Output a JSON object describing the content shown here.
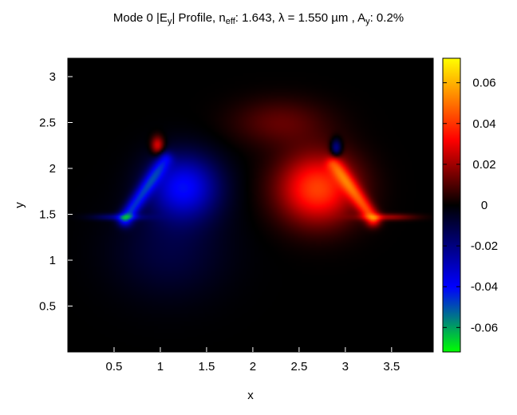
{
  "chart_data": {
    "type": "heatmap",
    "title_parts": {
      "prefix": "Mode 0 |E",
      "field_sub": "y",
      "after_field": "| Profile, n",
      "neff_sub": "eff",
      "neff_value": ": 1.643, λ = 1.550 µm , A",
      "area_sub": "y",
      "area_value": ": 0.2%"
    },
    "xlabel": "x",
    "ylabel": "y",
    "xlim": [
      0,
      3.95
    ],
    "ylim": [
      0,
      3.2
    ],
    "xticks": [
      {
        "value": 0.5,
        "label": "0.5"
      },
      {
        "value": 1,
        "label": "1"
      },
      {
        "value": 1.5,
        "label": "1.5"
      },
      {
        "value": 2,
        "label": "2"
      },
      {
        "value": 2.5,
        "label": "2.5"
      },
      {
        "value": 3,
        "label": "3"
      },
      {
        "value": 3.5,
        "label": "3.5"
      }
    ],
    "yticks": [
      {
        "value": 0.5,
        "label": "0.5"
      },
      {
        "value": 1,
        "label": "1"
      },
      {
        "value": 1.5,
        "label": "1.5"
      },
      {
        "value": 2,
        "label": "2"
      },
      {
        "value": 2.5,
        "label": "2.5"
      },
      {
        "value": 3,
        "label": "3"
      }
    ],
    "colorbar": {
      "range": [
        -0.072,
        0.072
      ],
      "ticks": [
        {
          "value": 0.06,
          "label": "0.06"
        },
        {
          "value": 0.04,
          "label": "0.04"
        },
        {
          "value": 0.02,
          "label": "0.02"
        },
        {
          "value": 0,
          "label": "0"
        },
        {
          "value": -0.02,
          "label": "-0.02"
        },
        {
          "value": -0.04,
          "label": "-0.04"
        },
        {
          "value": -0.06,
          "label": "-0.06"
        }
      ],
      "colormap": [
        {
          "value": -0.072,
          "color": "#00ff00"
        },
        {
          "value": -0.04,
          "color": "#0000ff"
        },
        {
          "value": 0,
          "color": "#000000"
        },
        {
          "value": 0.032,
          "color": "#ff0000"
        },
        {
          "value": 0.072,
          "color": "#ffff00"
        }
      ]
    },
    "field_features": [
      {
        "name": "left-lobe",
        "sign": -1,
        "peak": -0.045,
        "center": [
          1.25,
          1.75
        ],
        "extent": "broad lobe around x 0.6–1.5, y 1.3–2.2"
      },
      {
        "name": "left-sidewall-hotspot",
        "sign": -1,
        "peak": -0.07,
        "center": [
          0.85,
          1.6
        ],
        "extent": "along the left sidewall from (0.6, 1.45) to (1.05, 2.1)"
      },
      {
        "name": "right-lobe",
        "sign": 1,
        "peak": 0.045,
        "center": [
          2.75,
          1.75
        ],
        "extent": "broad lobe around x 2.2–3.3, y 1.3–2.2"
      },
      {
        "name": "right-sidewall-hotspot",
        "sign": 1,
        "peak": 0.065,
        "center": [
          3.15,
          1.55
        ],
        "extent": "along the right sidewall from (2.9, 2.0) to (3.3, 1.45)"
      },
      {
        "name": "left-top-corner",
        "sign": 1,
        "peak": 0.035,
        "center": [
          0.97,
          2.25
        ]
      },
      {
        "name": "right-top-corner",
        "sign": -1,
        "peak": -0.03,
        "center": [
          2.9,
          2.25
        ]
      }
    ],
    "grid": false
  }
}
